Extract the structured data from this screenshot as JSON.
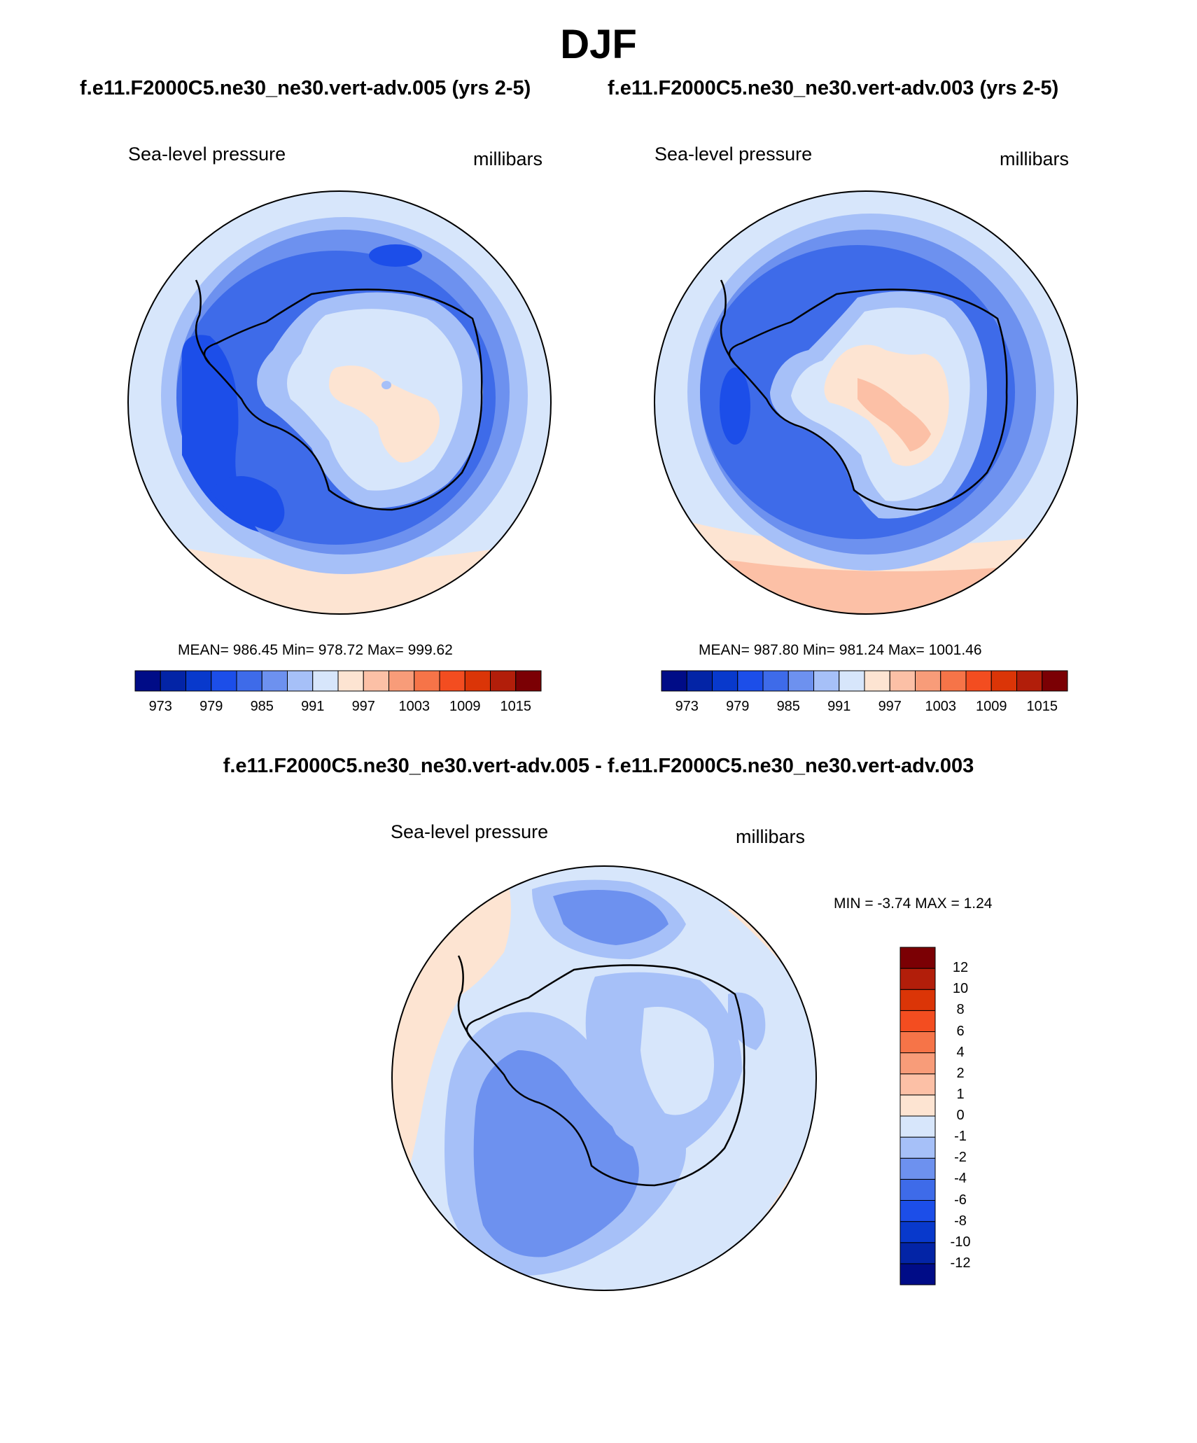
{
  "title": "DJF",
  "panels": [
    {
      "title": "f.e11.F2000C5.ne30_ne30.vert-adv.005 (yrs 2-5)",
      "left_label": "Sea-level pressure",
      "right_label": "millibars",
      "stats": "MEAN= 986.45  Min= 978.72  Max= 999.62"
    },
    {
      "title": "f.e11.F2000C5.ne30_ne30.vert-adv.003 (yrs 2-5)",
      "left_label": "Sea-level pressure",
      "right_label": "millibars",
      "stats": "MEAN= 987.80  Min= 981.24  Max= 1001.46"
    },
    {
      "title": "f.e11.F2000C5.ne30_ne30.vert-adv.005 - f.e11.F2000C5.ne30_ne30.vert-adv.003",
      "left_label": "Sea-level pressure",
      "right_label": "millibars",
      "stats": "MIN =  -3.74 MAX =   1.24"
    }
  ],
  "colorbar_abs": {
    "colors": [
      "#000c87",
      "#0324a6",
      "#0839cc",
      "#1c4ee9",
      "#3e6be9",
      "#6d91ef",
      "#a6c0f8",
      "#d7e6fb",
      "#fde4d2",
      "#fcc0a6",
      "#f89c79",
      "#f67448",
      "#f34d20",
      "#db3507",
      "#b21e0a",
      "#7b0004"
    ],
    "ticks": [
      "973",
      "979",
      "985",
      "991",
      "997",
      "1003",
      "1009",
      "1015"
    ]
  },
  "colorbar_diff": {
    "colors": [
      "#000c87",
      "#0324a6",
      "#0839cc",
      "#1c4ee9",
      "#3e6be9",
      "#6d91ef",
      "#a6c0f8",
      "#d7e6fb",
      "#fde4d2",
      "#fcc0a6",
      "#f89c79",
      "#f67448",
      "#f34d20",
      "#db3507",
      "#b21e0a",
      "#7b0004"
    ],
    "ticks": [
      "-12",
      "-10",
      "-8",
      "-6",
      "-4",
      "-2",
      "-1",
      "0",
      "1",
      "2",
      "4",
      "6",
      "8",
      "10",
      "12"
    ]
  }
}
